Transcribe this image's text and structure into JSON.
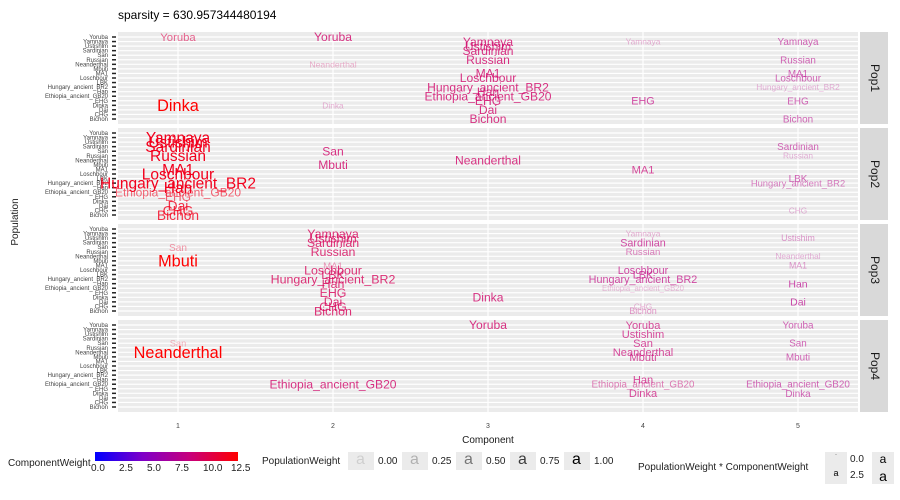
{
  "title": "sparsity = 630.957344480194",
  "chart_data": {
    "type": "scatter",
    "xlabel": "Component",
    "ylabel": "Population",
    "x_ticks": [
      "1",
      "2",
      "3",
      "4",
      "5"
    ],
    "populations": [
      "Yoruba",
      "Yamnaya",
      "Ustishim",
      "Sardinian",
      "San",
      "Russian",
      "Neanderthal",
      "Mbuti",
      "MA1",
      "Loschbour",
      "LBK",
      "Hungary_ancient_BR2",
      "Han",
      "Ethiopia_ancient_GB20",
      "EHG",
      "Dinka",
      "Dai",
      "CHG",
      "Bichon"
    ],
    "facets": [
      "Pop1",
      "Pop2",
      "Pop3",
      "Pop4"
    ],
    "labels": [
      {
        "facet": 0,
        "component": 1,
        "pop": "Yoruba",
        "weight": 10.0,
        "popweight": 0.6
      },
      {
        "facet": 0,
        "component": 1,
        "pop": "Dinka",
        "weight": 12.5,
        "popweight": 1.0
      },
      {
        "facet": 0,
        "component": 2,
        "pop": "Yoruba",
        "weight": 9.0,
        "popweight": 0.8
      },
      {
        "facet": 0,
        "component": 2,
        "pop": "Neanderthal",
        "weight": 9.0,
        "popweight": 0.3
      },
      {
        "facet": 0,
        "component": 2,
        "pop": "Dinka",
        "weight": 8.0,
        "popweight": 0.3
      },
      {
        "facet": 0,
        "component": 3,
        "pop": "Yamnaya",
        "weight": 9.0,
        "popweight": 0.8
      },
      {
        "facet": 0,
        "component": 3,
        "pop": "Ustishim",
        "weight": 9.0,
        "popweight": 0.8
      },
      {
        "facet": 0,
        "component": 3,
        "pop": "Sardinian",
        "weight": 9.0,
        "popweight": 0.8
      },
      {
        "facet": 0,
        "component": 3,
        "pop": "Russian",
        "weight": 9.0,
        "popweight": 0.8
      },
      {
        "facet": 0,
        "component": 3,
        "pop": "MA1",
        "weight": 9.0,
        "popweight": 0.8
      },
      {
        "facet": 0,
        "component": 3,
        "pop": "Loschbour",
        "weight": 9.0,
        "popweight": 0.8
      },
      {
        "facet": 0,
        "component": 3,
        "pop": "Hungary_ancient_BR2",
        "weight": 9.0,
        "popweight": 0.8
      },
      {
        "facet": 0,
        "component": 3,
        "pop": "Han",
        "weight": 9.0,
        "popweight": 0.8
      },
      {
        "facet": 0,
        "component": 3,
        "pop": "Ethiopia_ancient_GB20",
        "weight": 9.0,
        "popweight": 0.8
      },
      {
        "facet": 0,
        "component": 3,
        "pop": "EHG",
        "weight": 9.0,
        "popweight": 0.8
      },
      {
        "facet": 0,
        "component": 3,
        "pop": "Dai",
        "weight": 9.0,
        "popweight": 0.8
      },
      {
        "facet": 0,
        "component": 3,
        "pop": "Bichon",
        "weight": 9.0,
        "popweight": 0.8
      },
      {
        "facet": 0,
        "component": 4,
        "pop": "Yamnaya",
        "weight": 8.0,
        "popweight": 0.3
      },
      {
        "facet": 0,
        "component": 4,
        "pop": "EHG",
        "weight": 8.0,
        "popweight": 0.7
      },
      {
        "facet": 0,
        "component": 5,
        "pop": "Yamnaya",
        "weight": 7.5,
        "popweight": 0.6
      },
      {
        "facet": 0,
        "component": 5,
        "pop": "Russian",
        "weight": 7.5,
        "popweight": 0.6
      },
      {
        "facet": 0,
        "component": 5,
        "pop": "MA1",
        "weight": 7.5,
        "popweight": 0.6
      },
      {
        "facet": 0,
        "component": 5,
        "pop": "Loschbour",
        "weight": 7.5,
        "popweight": 0.6
      },
      {
        "facet": 0,
        "component": 5,
        "pop": "Hungary_ancient_BR2",
        "weight": 7.5,
        "popweight": 0.3
      },
      {
        "facet": 0,
        "component": 5,
        "pop": "EHG",
        "weight": 7.5,
        "popweight": 0.6
      },
      {
        "facet": 0,
        "component": 5,
        "pop": "Bichon",
        "weight": 7.5,
        "popweight": 0.6
      },
      {
        "facet": 1,
        "component": 1,
        "pop": "Yamnaya",
        "weight": 11.5,
        "popweight": 1.0
      },
      {
        "facet": 1,
        "component": 1,
        "pop": "Ustishim",
        "weight": 11.5,
        "popweight": 1.0
      },
      {
        "facet": 1,
        "component": 1,
        "pop": "Sardinian",
        "weight": 11.5,
        "popweight": 1.0
      },
      {
        "facet": 1,
        "component": 1,
        "pop": "Russian",
        "weight": 11.5,
        "popweight": 1.0
      },
      {
        "facet": 1,
        "component": 1,
        "pop": "MA1",
        "weight": 11.5,
        "popweight": 1.0
      },
      {
        "facet": 1,
        "component": 1,
        "pop": "Loschbour",
        "weight": 11.5,
        "popweight": 1.0
      },
      {
        "facet": 1,
        "component": 1,
        "pop": "Hungary_ancient_BR2",
        "weight": 11.5,
        "popweight": 1.0
      },
      {
        "facet": 1,
        "component": 1,
        "pop": "Han",
        "weight": 11.5,
        "popweight": 1.0
      },
      {
        "facet": 1,
        "component": 1,
        "pop": "Ethiopia_ancient_GB20",
        "weight": 11.5,
        "popweight": 0.6
      },
      {
        "facet": 1,
        "component": 1,
        "pop": "EHG",
        "weight": 11.5,
        "popweight": 0.6
      },
      {
        "facet": 1,
        "component": 1,
        "pop": "Dai",
        "weight": 11.5,
        "popweight": 0.8
      },
      {
        "facet": 1,
        "component": 1,
        "pop": "CHG",
        "weight": 11.5,
        "popweight": 0.8
      },
      {
        "facet": 1,
        "component": 1,
        "pop": "Bichon",
        "weight": 11.5,
        "popweight": 0.8
      },
      {
        "facet": 1,
        "component": 2,
        "pop": "San",
        "weight": 9.0,
        "popweight": 0.8
      },
      {
        "facet": 1,
        "component": 2,
        "pop": "Mbuti",
        "weight": 9.0,
        "popweight": 0.8
      },
      {
        "facet": 1,
        "component": 3,
        "pop": "Neanderthal",
        "weight": 9.0,
        "popweight": 0.8
      },
      {
        "facet": 1,
        "component": 4,
        "pop": "MA1",
        "weight": 8.5,
        "popweight": 0.7
      },
      {
        "facet": 1,
        "component": 5,
        "pop": "Sardinian",
        "weight": 7.5,
        "popweight": 0.6
      },
      {
        "facet": 1,
        "component": 5,
        "pop": "Russian",
        "weight": 7.5,
        "popweight": 0.3
      },
      {
        "facet": 1,
        "component": 5,
        "pop": "LBK",
        "weight": 7.5,
        "popweight": 0.6
      },
      {
        "facet": 1,
        "component": 5,
        "pop": "Hungary_ancient_BR2",
        "weight": 7.5,
        "popweight": 0.5
      },
      {
        "facet": 1,
        "component": 5,
        "pop": "CHG",
        "weight": 7.5,
        "popweight": 0.3
      },
      {
        "facet": 2,
        "component": 1,
        "pop": "San",
        "weight": 11.0,
        "popweight": 0.4
      },
      {
        "facet": 2,
        "component": 1,
        "pop": "Mbuti",
        "weight": 12.5,
        "popweight": 1.0
      },
      {
        "facet": 2,
        "component": 2,
        "pop": "Yamnaya",
        "weight": 9.5,
        "popweight": 0.8
      },
      {
        "facet": 2,
        "component": 2,
        "pop": "Ustishim",
        "weight": 9.5,
        "popweight": 0.8
      },
      {
        "facet": 2,
        "component": 2,
        "pop": "Sardinian",
        "weight": 9.5,
        "popweight": 0.8
      },
      {
        "facet": 2,
        "component": 2,
        "pop": "Russian",
        "weight": 9.5,
        "popweight": 0.8
      },
      {
        "facet": 2,
        "component": 2,
        "pop": "MA1",
        "weight": 9.5,
        "popweight": 0.4
      },
      {
        "facet": 2,
        "component": 2,
        "pop": "Loschbour",
        "weight": 9.5,
        "popweight": 0.8
      },
      {
        "facet": 2,
        "component": 2,
        "pop": "LBK",
        "weight": 9.5,
        "popweight": 0.8
      },
      {
        "facet": 2,
        "component": 2,
        "pop": "Hungary_ancient_BR2",
        "weight": 9.5,
        "popweight": 0.8
      },
      {
        "facet": 2,
        "component": 2,
        "pop": "Han",
        "weight": 9.5,
        "popweight": 0.8
      },
      {
        "facet": 2,
        "component": 2,
        "pop": "EHG",
        "weight": 9.5,
        "popweight": 0.8
      },
      {
        "facet": 2,
        "component": 2,
        "pop": "Dai",
        "weight": 9.5,
        "popweight": 0.8
      },
      {
        "facet": 2,
        "component": 2,
        "pop": "CHG",
        "weight": 9.5,
        "popweight": 0.8
      },
      {
        "facet": 2,
        "component": 2,
        "pop": "Bichon",
        "weight": 9.5,
        "popweight": 0.8
      },
      {
        "facet": 2,
        "component": 3,
        "pop": "Dinka",
        "weight": 9.0,
        "popweight": 0.8
      },
      {
        "facet": 2,
        "component": 4,
        "pop": "Yamnaya",
        "weight": 8.0,
        "popweight": 0.3
      },
      {
        "facet": 2,
        "component": 4,
        "pop": "Sardinian",
        "weight": 8.0,
        "popweight": 0.7
      },
      {
        "facet": 2,
        "component": 4,
        "pop": "Russian",
        "weight": 8.0,
        "popweight": 0.5
      },
      {
        "facet": 2,
        "component": 4,
        "pop": "Loschbour",
        "weight": 8.0,
        "popweight": 0.7
      },
      {
        "facet": 2,
        "component": 4,
        "pop": "LBK",
        "weight": 8.0,
        "popweight": 0.7
      },
      {
        "facet": 2,
        "component": 4,
        "pop": "Hungary_ancient_BR2",
        "weight": 8.0,
        "popweight": 0.7
      },
      {
        "facet": 2,
        "component": 4,
        "pop": "Ethiopia_ancient_GB20",
        "weight": 8.0,
        "popweight": 0.2
      },
      {
        "facet": 2,
        "component": 4,
        "pop": "CHG",
        "weight": 8.0,
        "popweight": 0.3
      },
      {
        "facet": 2,
        "component": 4,
        "pop": "Bichon",
        "weight": 8.0,
        "popweight": 0.4
      },
      {
        "facet": 2,
        "component": 5,
        "pop": "Ustishim",
        "weight": 7.5,
        "popweight": 0.4
      },
      {
        "facet": 2,
        "component": 5,
        "pop": "Neanderthal",
        "weight": 7.5,
        "popweight": 0.3
      },
      {
        "facet": 2,
        "component": 5,
        "pop": "MA1",
        "weight": 7.5,
        "popweight": 0.4
      },
      {
        "facet": 2,
        "component": 5,
        "pop": "Han",
        "weight": 7.5,
        "popweight": 0.7
      },
      {
        "facet": 2,
        "component": 5,
        "pop": "Dai",
        "weight": 7.5,
        "popweight": 0.7
      },
      {
        "facet": 3,
        "component": 1,
        "pop": "San",
        "weight": 11.0,
        "popweight": 0.3
      },
      {
        "facet": 3,
        "component": 1,
        "pop": "Neanderthal",
        "weight": 12.5,
        "popweight": 1.0
      },
      {
        "facet": 3,
        "component": 2,
        "pop": "Ethiopia_ancient_GB20",
        "weight": 9.0,
        "popweight": 0.8
      },
      {
        "facet": 3,
        "component": 3,
        "pop": "Yoruba",
        "weight": 9.0,
        "popweight": 0.8
      },
      {
        "facet": 3,
        "component": 4,
        "pop": "Yoruba",
        "weight": 8.5,
        "popweight": 0.7
      },
      {
        "facet": 3,
        "component": 4,
        "pop": "Ustishim",
        "weight": 8.5,
        "popweight": 0.7
      },
      {
        "facet": 3,
        "component": 4,
        "pop": "San",
        "weight": 8.5,
        "popweight": 0.7
      },
      {
        "facet": 3,
        "component": 4,
        "pop": "Neanderthal",
        "weight": 8.5,
        "popweight": 0.7
      },
      {
        "facet": 3,
        "component": 4,
        "pop": "Mbuti",
        "weight": 8.5,
        "popweight": 0.7
      },
      {
        "facet": 3,
        "component": 4,
        "pop": "Han",
        "weight": 8.5,
        "popweight": 0.7
      },
      {
        "facet": 3,
        "component": 4,
        "pop": "Ethiopia_ancient_GB20",
        "weight": 8.5,
        "popweight": 0.5
      },
      {
        "facet": 3,
        "component": 4,
        "pop": "Dinka",
        "weight": 8.5,
        "popweight": 0.7
      },
      {
        "facet": 3,
        "component": 5,
        "pop": "Yoruba",
        "weight": 7.5,
        "popweight": 0.6
      },
      {
        "facet": 3,
        "component": 5,
        "pop": "San",
        "weight": 7.5,
        "popweight": 0.6
      },
      {
        "facet": 3,
        "component": 5,
        "pop": "Mbuti",
        "weight": 7.5,
        "popweight": 0.6
      },
      {
        "facet": 3,
        "component": 5,
        "pop": "Ethiopia_ancient_GB20",
        "weight": 7.5,
        "popweight": 0.6
      },
      {
        "facet": 3,
        "component": 5,
        "pop": "Dinka",
        "weight": 7.5,
        "popweight": 0.6
      }
    ]
  },
  "legend": {
    "component_weight_title": "ComponentWeight",
    "component_weight_ticks": [
      "0.0",
      "2.5",
      "5.0",
      "7.5",
      "10.0",
      "12.5"
    ],
    "colors": [
      "#0000ff",
      "#7f00c8",
      "#c8007a",
      "#ff0000"
    ],
    "population_weight_title": "PopulationWeight",
    "population_weight_ticks": [
      "0.00",
      "0.25",
      "0.50",
      "0.75",
      "1.00"
    ],
    "product_title": "PopulationWeight * ComponentWeight",
    "product_ticks": [
      "0.0",
      "2.5"
    ],
    "glyph": "a"
  }
}
